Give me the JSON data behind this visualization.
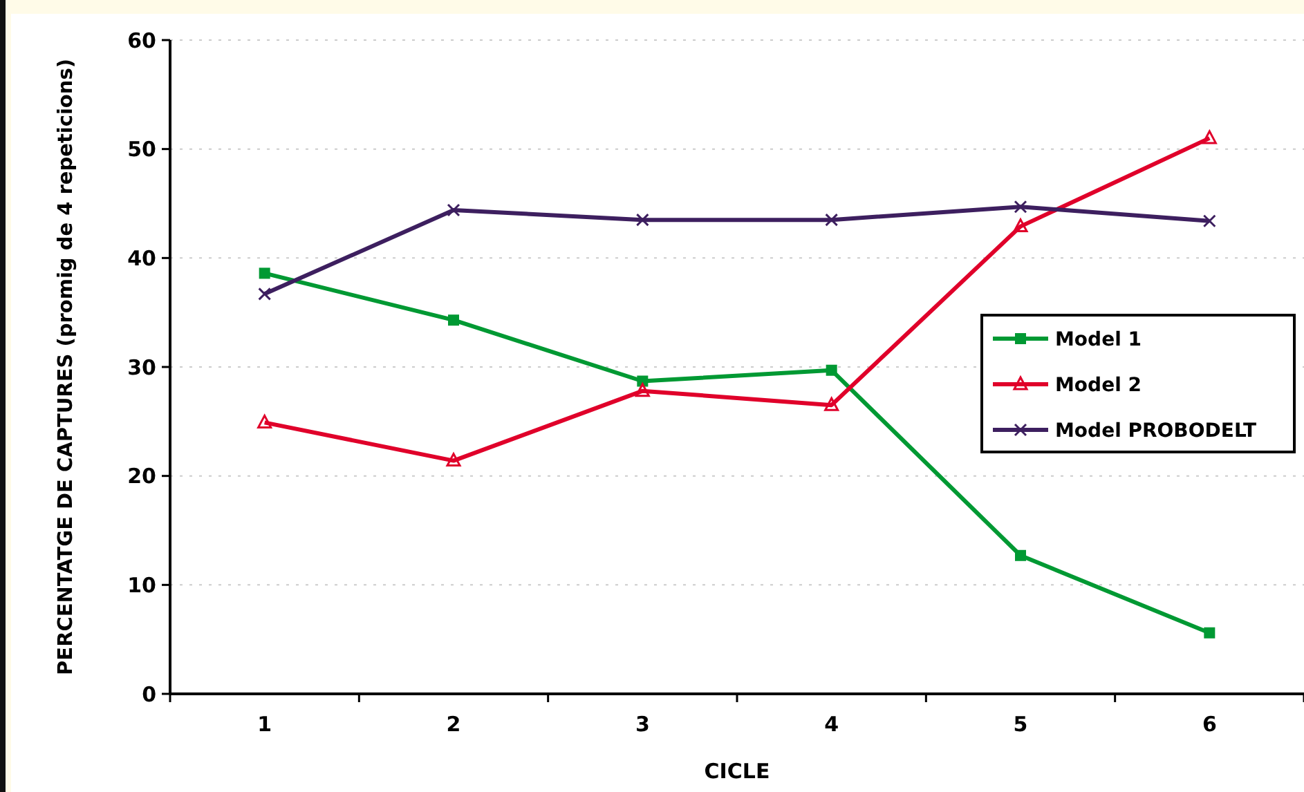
{
  "chart_data": {
    "type": "line",
    "xlabel": "CICLE",
    "ylabel": "PERCENTATGE DE CAPTURES (promig de 4 repeticions)",
    "categories": [
      "1",
      "2",
      "3",
      "4",
      "5",
      "6"
    ],
    "series": [
      {
        "name": "Model 1",
        "color": "#009933",
        "marker": "square",
        "values": [
          38.6,
          34.3,
          28.7,
          29.7,
          12.7,
          5.6
        ]
      },
      {
        "name": "Model 2",
        "color": "#e0002a",
        "marker": "triangle",
        "values": [
          24.9,
          21.4,
          27.8,
          26.5,
          42.9,
          51
        ]
      },
      {
        "name": "Model PROBODELT",
        "color": "#3d1f5f",
        "marker": "cross",
        "values": [
          36.7,
          44.4,
          43.5,
          43.5,
          44.7,
          43.4
        ]
      }
    ],
    "ylim": [
      0,
      60
    ],
    "yticks": [
      0,
      10,
      20,
      30,
      40,
      50,
      60
    ],
    "grid": "y",
    "legend": "right",
    "line_style": "solid"
  }
}
